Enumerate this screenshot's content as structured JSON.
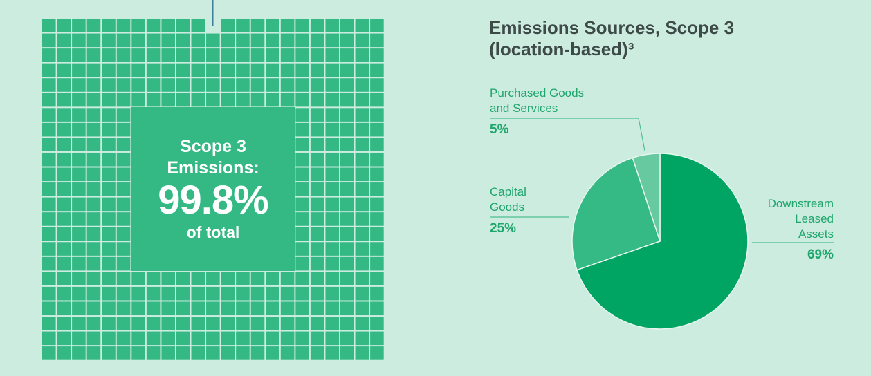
{
  "waffle": {
    "line1": "Scope 3",
    "line2": "Emissions:",
    "value": "99.8%",
    "line3": "of total",
    "cell_color": "#34b985",
    "pointer_color": "#3e7a9a"
  },
  "chart_data": {
    "type": "pie",
    "title": "Emissions Sources, Scope 3",
    "subtitle": "(location-based)³",
    "slices": [
      {
        "label": "Downstream Leased Assets",
        "value": 69,
        "display": "69%",
        "color": "#00a563"
      },
      {
        "label": "Capital Goods",
        "value": 25,
        "display": "25%",
        "color": "#35b985"
      },
      {
        "label": "Purchased Goods and Services",
        "value": 5,
        "display": "5%",
        "color": "#66c9a0"
      }
    ],
    "labels": {
      "dla": [
        "Downstream",
        "Leased",
        "Assets"
      ],
      "capital": [
        "Capital",
        "Goods"
      ],
      "purchased": [
        "Purchased Goods",
        "and Services"
      ]
    }
  }
}
